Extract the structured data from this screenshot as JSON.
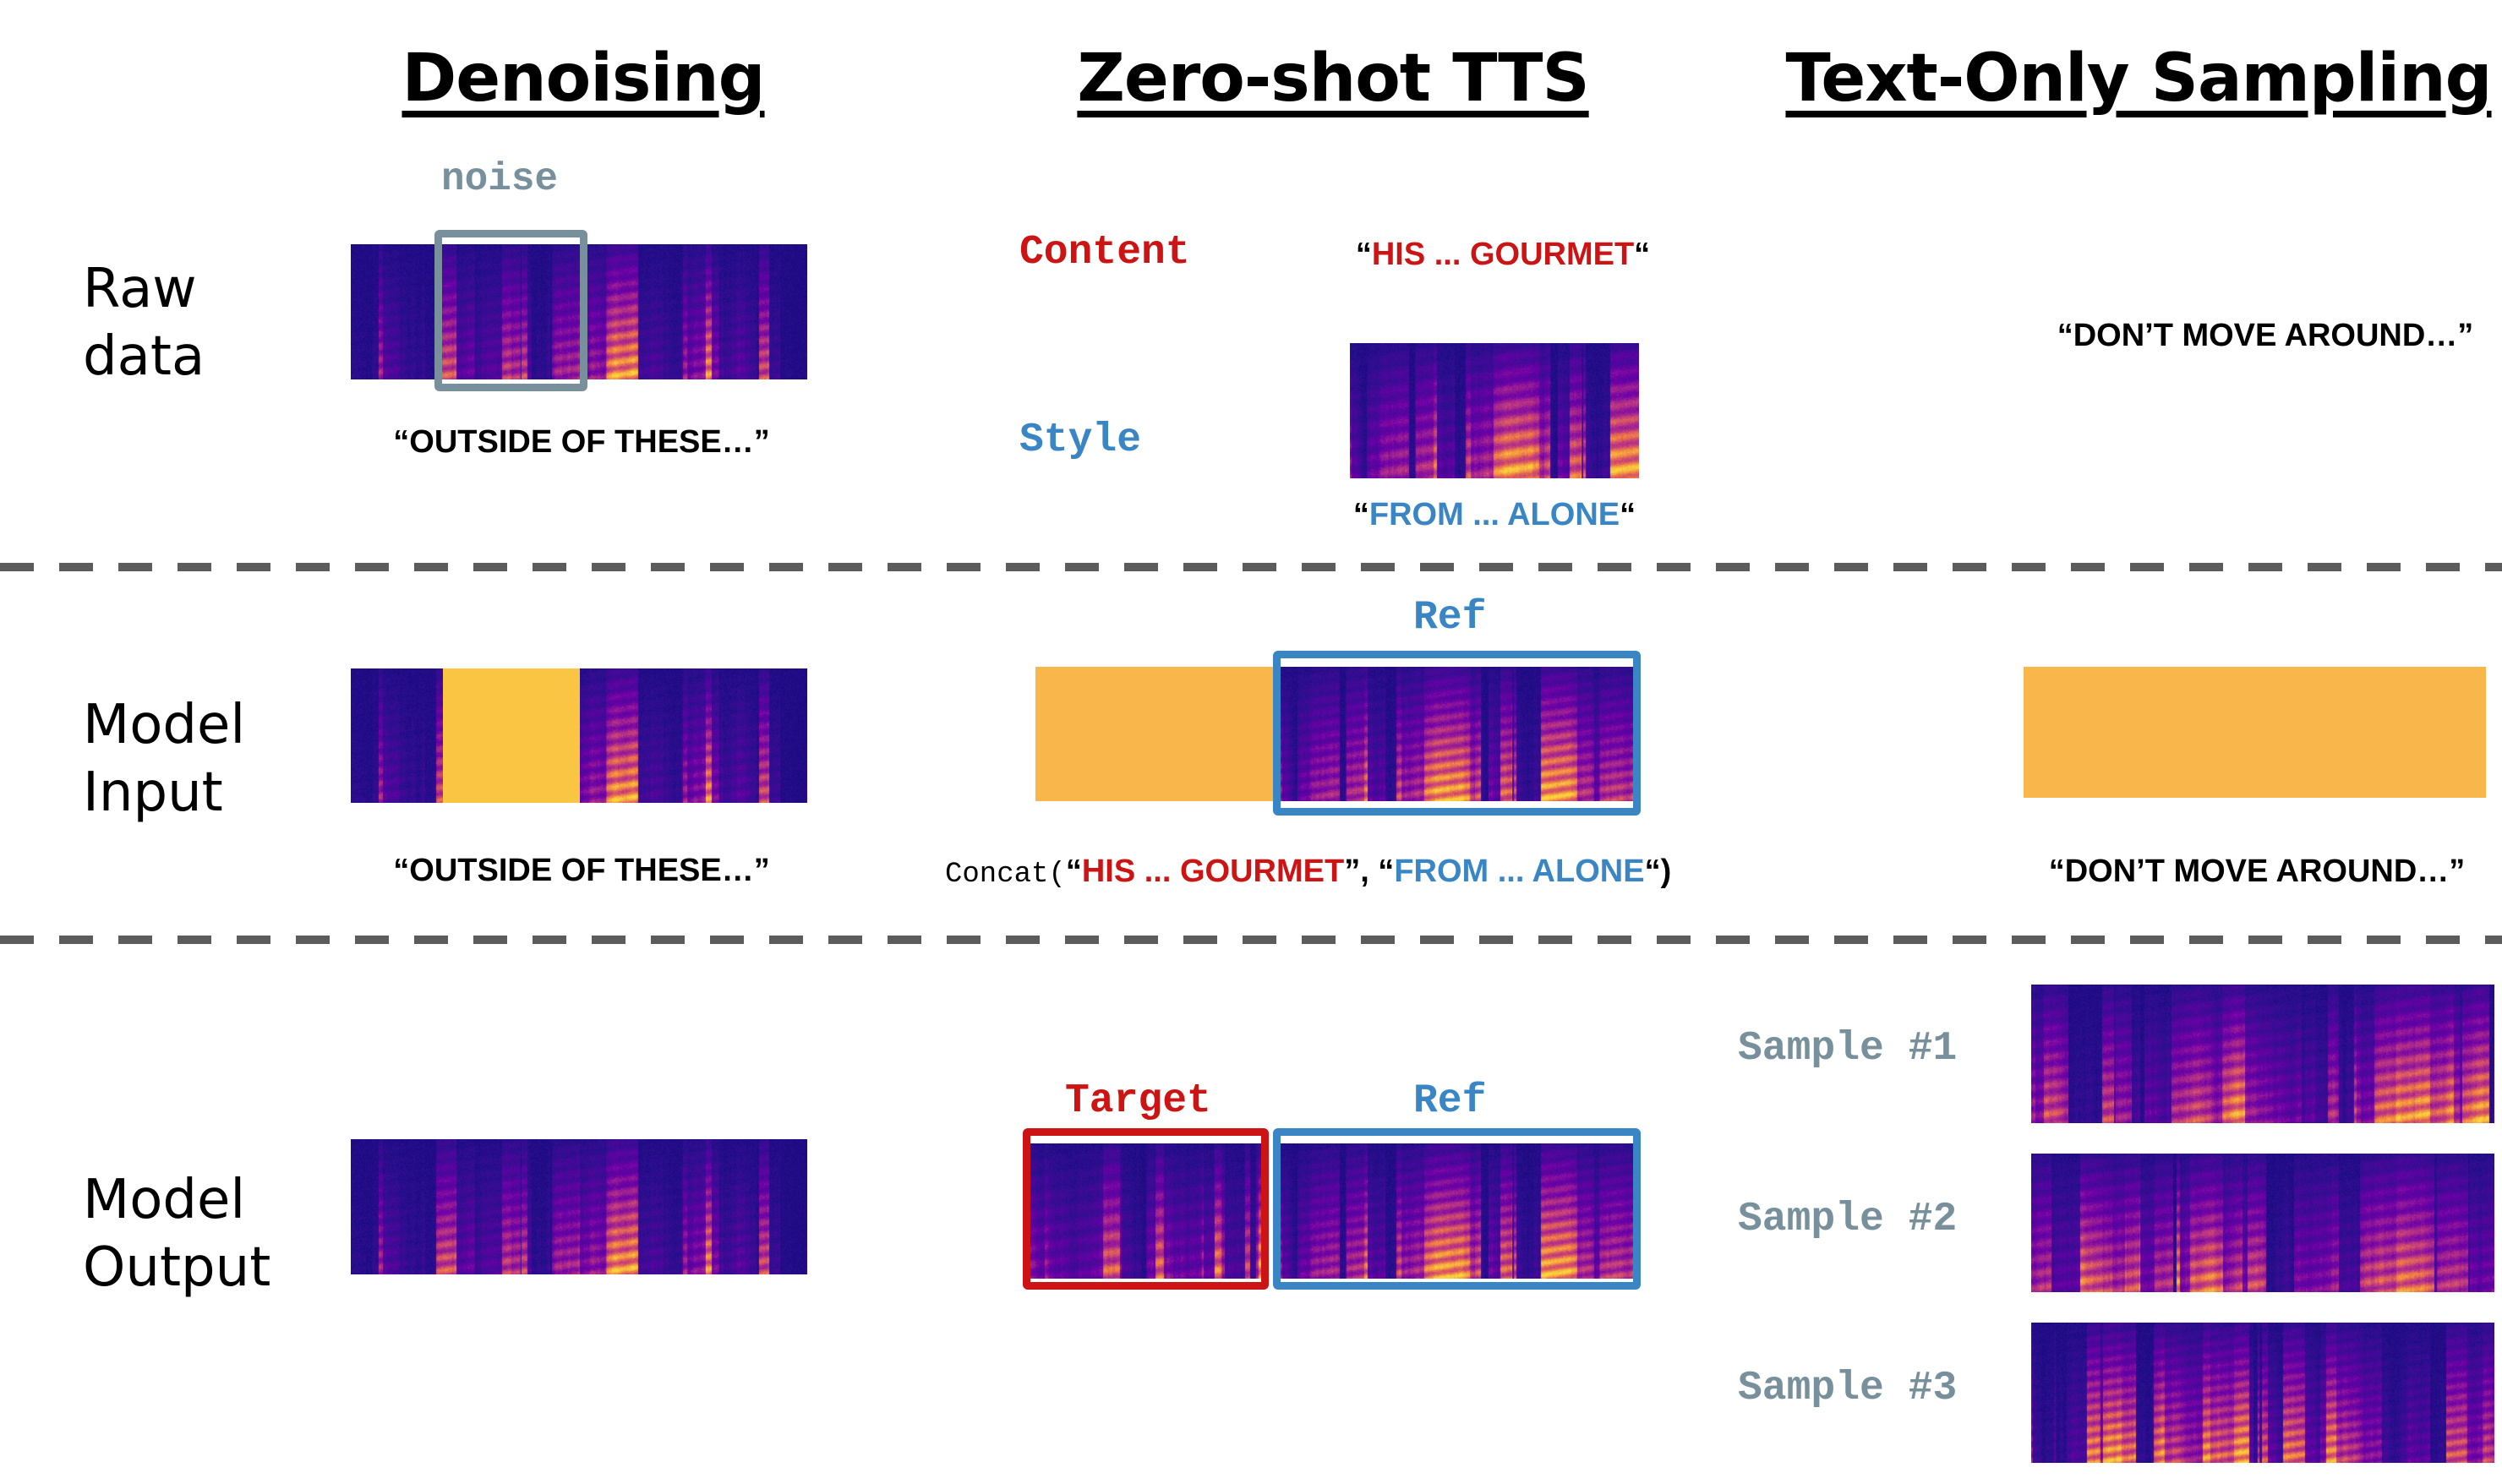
{
  "columns": {
    "denoising": "Denoising",
    "zero_shot": "Zero-shot TTS",
    "text_only": "Text-Only Sampling"
  },
  "rows": {
    "raw": "Raw\ndata",
    "input": "Model\nInput",
    "output": "Model\nOutput"
  },
  "denoising": {
    "noise_label": "noise",
    "raw_transcript": "“OUTSIDE OF THESE…”",
    "input_transcript": "“OUTSIDE OF THESE…”"
  },
  "zero_shot": {
    "content_label": "Content",
    "content_text": "HIS ... GOURMET",
    "style_label": "Style",
    "style_text": "FROM ... ALONE",
    "open_quote": "“",
    "close_quote": "“",
    "ref_label_input": "Ref",
    "concat_prefix": "Concat(",
    "concat_open1": "“",
    "concat_text1": "HIS ... GOURMET",
    "concat_mid": "”, “",
    "concat_text2": "FROM ... ALONE",
    "concat_close": "“)",
    "target_label": "Target",
    "ref_label_output": "Ref"
  },
  "text_only": {
    "raw_transcript": "“DON’T MOVE AROUND…”",
    "input_transcript": "“DON’T MOVE AROUND…”",
    "samples": [
      "Sample #1",
      "Sample #2",
      "Sample #3"
    ]
  },
  "colors": {
    "content_red": "#cc1414",
    "style_blue": "#3a86c5",
    "noise_gray": "#78909c",
    "mask_yellow_denoise": "#fbc544",
    "mask_yellow_tts": "#f9b74b",
    "divider": "#5c5c5c"
  }
}
